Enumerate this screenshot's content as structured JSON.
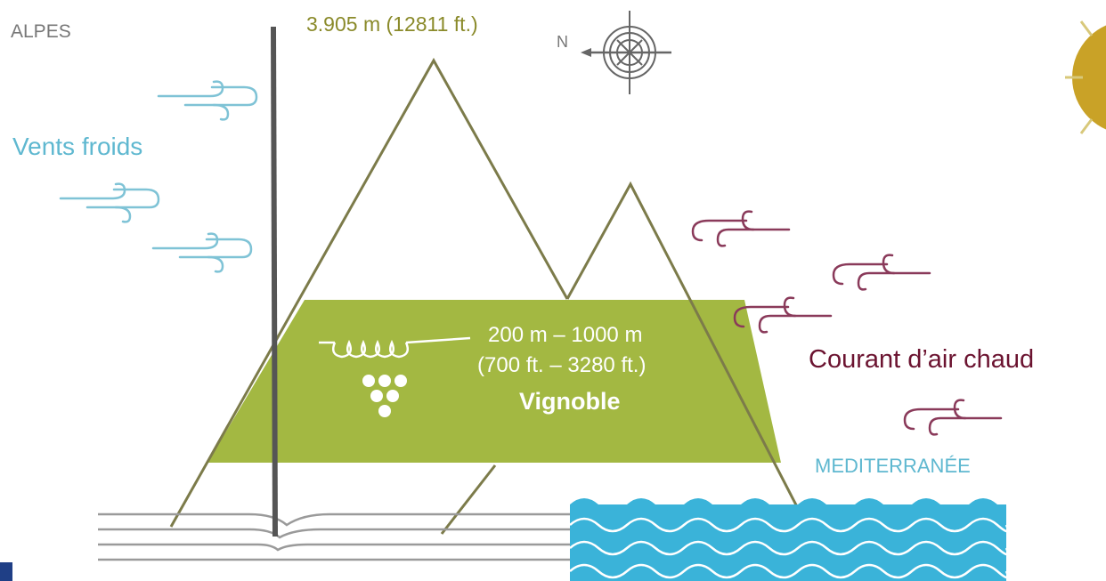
{
  "labels": {
    "alps": "ALPES",
    "peak_altitude": "3.905 m (12811 ft.)",
    "cold_winds": "Vents froids",
    "warm_current": "Courant d’air chaud",
    "sea": "MEDITERRANÉE",
    "altitude_m": "200 m – 1000 m",
    "altitude_ft": "(700 ft. – 3280 ft.)",
    "vineyard": "Vignoble",
    "compass_north": "N"
  },
  "colors": {
    "mountain_stroke": "#7c7b4a",
    "vineyard_fill": "#a3b842",
    "cold_wind": "#7fc3d6",
    "warm_wind": "#8a3a5a",
    "sea": "#3ab3d9",
    "pole": "#555555",
    "sun": "#c9a227",
    "compass": "#666666",
    "corner_mark": "#1f3f86"
  },
  "icons": [
    "compass-icon",
    "sun-icon",
    "grape-vine-icon",
    "cold-wind-icon",
    "warm-wind-icon",
    "sea-waves-icon",
    "river-lines-icon"
  ]
}
